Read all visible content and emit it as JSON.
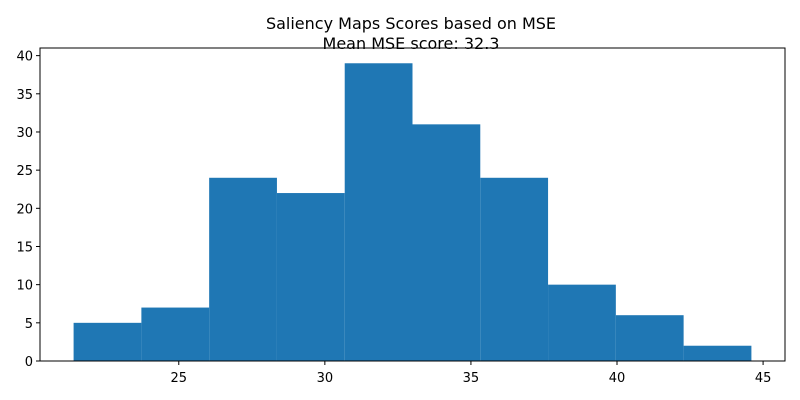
{
  "chart_data": {
    "type": "bar",
    "title": "Saliency Maps Scores based on MSE",
    "subtitle": "Mean MSE score: 32.3",
    "xlabel": "",
    "ylabel": "",
    "bin_edges": [
      21.4,
      23.72,
      26.04,
      28.36,
      30.68,
      33.0,
      35.32,
      37.64,
      39.96,
      42.28,
      44.6
    ],
    "values": [
      5,
      7,
      24,
      22,
      39,
      31,
      24,
      10,
      6,
      2
    ],
    "xlim": [
      20.25,
      45.75
    ],
    "ylim": [
      0,
      41
    ],
    "xticks": [
      25,
      30,
      35,
      40,
      45
    ],
    "yticks": [
      0,
      5,
      10,
      15,
      20,
      25,
      30,
      35,
      40
    ],
    "bar_color": "#1f77b4",
    "grid": false,
    "legend": "none"
  }
}
